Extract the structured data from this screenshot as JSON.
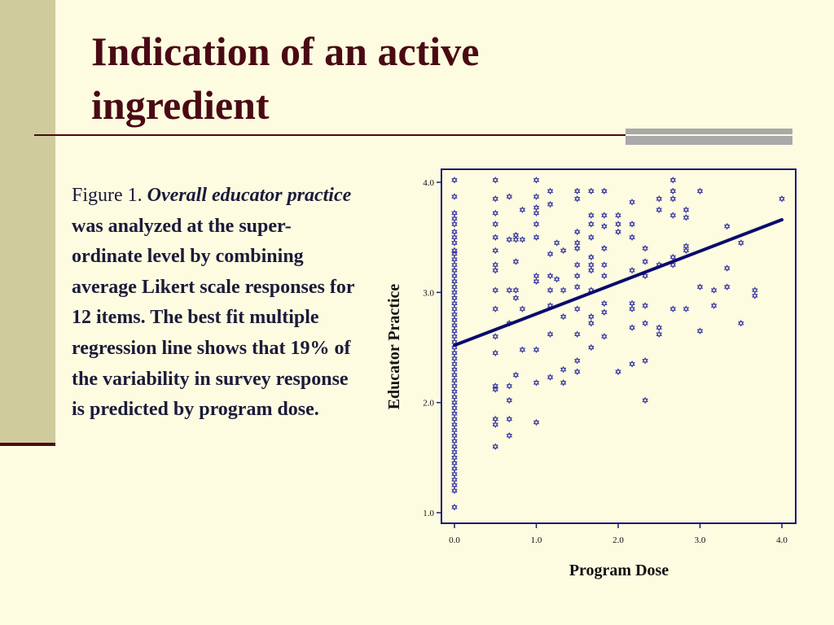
{
  "slide": {
    "title": "Indication of an active ingredient",
    "caption": {
      "label": "Figure 1.",
      "emphasis": "Overall educator practice",
      "body": "was analyzed at the super-ordinate level by combining average Likert scale responses for 12 items. The best fit multiple regression line shows that 19% of the variability in survey response is predicted by program dose."
    }
  },
  "colors": {
    "background": "#fdfbe0",
    "title": "#4a0a14",
    "left_band": "#cfcb9c",
    "accent_bar": "#a9a8aa",
    "caption_text": "#1b1b3a",
    "plot_frame": "#1a1a7a",
    "points": "#3a3aa0",
    "fit_line": "#0a0a6e"
  },
  "chart_data": {
    "type": "scatter",
    "xlabel": "Program Dose",
    "ylabel": "Educator Practice",
    "xlim": [
      -0.1,
      4.17
    ],
    "ylim": [
      0.9,
      4.1
    ],
    "x_ticks": [
      "0.0",
      "1.0",
      "2.0",
      "3.0",
      "4.0"
    ],
    "y_ticks": [
      "1.0",
      "2.0",
      "3.0",
      "4.0"
    ],
    "grid": false,
    "marker": "star-of-david",
    "fit_line": {
      "x": [
        0.0,
        4.0
      ],
      "y": [
        2.52,
        3.66
      ]
    },
    "points": [
      [
        0,
        4.02
      ],
      [
        0,
        3.87
      ],
      [
        0,
        3.72
      ],
      [
        0,
        3.67
      ],
      [
        0,
        3.62
      ],
      [
        0,
        3.55
      ],
      [
        0,
        3.5
      ],
      [
        0,
        3.45
      ],
      [
        0,
        3.38
      ],
      [
        0,
        3.35
      ],
      [
        0,
        3.3
      ],
      [
        0,
        3.25
      ],
      [
        0,
        3.2
      ],
      [
        0,
        3.15
      ],
      [
        0,
        3.1
      ],
      [
        0,
        3.05
      ],
      [
        0,
        3.0
      ],
      [
        0,
        2.95
      ],
      [
        0,
        2.9
      ],
      [
        0,
        2.85
      ],
      [
        0,
        2.8
      ],
      [
        0,
        2.75
      ],
      [
        0,
        2.7
      ],
      [
        0,
        2.65
      ],
      [
        0,
        2.6
      ],
      [
        0,
        2.55
      ],
      [
        0,
        2.5
      ],
      [
        0,
        2.45
      ],
      [
        0,
        2.4
      ],
      [
        0,
        2.35
      ],
      [
        0,
        2.3
      ],
      [
        0,
        2.25
      ],
      [
        0,
        2.2
      ],
      [
        0,
        2.15
      ],
      [
        0,
        2.1
      ],
      [
        0,
        2.05
      ],
      [
        0,
        2.0
      ],
      [
        0,
        1.95
      ],
      [
        0,
        1.9
      ],
      [
        0,
        1.85
      ],
      [
        0,
        1.8
      ],
      [
        0,
        1.75
      ],
      [
        0,
        1.7
      ],
      [
        0,
        1.65
      ],
      [
        0,
        1.6
      ],
      [
        0,
        1.55
      ],
      [
        0,
        1.5
      ],
      [
        0,
        1.45
      ],
      [
        0,
        1.4
      ],
      [
        0,
        1.35
      ],
      [
        0,
        1.3
      ],
      [
        0,
        1.25
      ],
      [
        0,
        1.2
      ],
      [
        0,
        1.05
      ],
      [
        0.5,
        4.02
      ],
      [
        0.5,
        3.85
      ],
      [
        0.5,
        3.72
      ],
      [
        0.5,
        3.62
      ],
      [
        0.5,
        3.5
      ],
      [
        0.5,
        3.38
      ],
      [
        0.5,
        3.25
      ],
      [
        0.5,
        3.2
      ],
      [
        0.5,
        3.02
      ],
      [
        0.5,
        2.85
      ],
      [
        0.5,
        2.6
      ],
      [
        0.5,
        2.45
      ],
      [
        0.5,
        2.15
      ],
      [
        0.5,
        2.12
      ],
      [
        0.5,
        1.85
      ],
      [
        0.5,
        1.8
      ],
      [
        0.5,
        1.6
      ],
      [
        0.67,
        3.87
      ],
      [
        0.67,
        3.48
      ],
      [
        0.67,
        3.02
      ],
      [
        0.67,
        2.72
      ],
      [
        0.67,
        2.15
      ],
      [
        0.67,
        2.02
      ],
      [
        0.67,
        1.85
      ],
      [
        0.67,
        1.7
      ],
      [
        0.75,
        3.52
      ],
      [
        0.75,
        3.48
      ],
      [
        0.75,
        3.28
      ],
      [
        0.75,
        3.02
      ],
      [
        0.75,
        2.95
      ],
      [
        0.75,
        2.25
      ],
      [
        0.83,
        3.75
      ],
      [
        0.83,
        3.48
      ],
      [
        0.83,
        2.85
      ],
      [
        0.83,
        2.48
      ],
      [
        1.0,
        4.02
      ],
      [
        1.0,
        3.87
      ],
      [
        1.0,
        3.77
      ],
      [
        1.0,
        3.72
      ],
      [
        1.0,
        3.62
      ],
      [
        1.0,
        3.5
      ],
      [
        1.0,
        3.15
      ],
      [
        1.0,
        3.1
      ],
      [
        1.0,
        2.48
      ],
      [
        1.0,
        2.18
      ],
      [
        1.0,
        1.82
      ],
      [
        1.17,
        3.92
      ],
      [
        1.17,
        3.8
      ],
      [
        1.17,
        3.35
      ],
      [
        1.17,
        3.15
      ],
      [
        1.17,
        3.02
      ],
      [
        1.17,
        2.88
      ],
      [
        1.17,
        2.62
      ],
      [
        1.17,
        2.23
      ],
      [
        1.25,
        3.45
      ],
      [
        1.25,
        3.12
      ],
      [
        1.33,
        3.38
      ],
      [
        1.33,
        3.02
      ],
      [
        1.33,
        2.78
      ],
      [
        1.33,
        2.3
      ],
      [
        1.33,
        2.18
      ],
      [
        1.5,
        3.92
      ],
      [
        1.5,
        3.85
      ],
      [
        1.5,
        3.55
      ],
      [
        1.5,
        3.45
      ],
      [
        1.5,
        3.4
      ],
      [
        1.5,
        3.25
      ],
      [
        1.5,
        3.15
      ],
      [
        1.5,
        3.05
      ],
      [
        1.5,
        2.85
      ],
      [
        1.5,
        2.62
      ],
      [
        1.5,
        2.38
      ],
      [
        1.5,
        2.28
      ],
      [
        1.67,
        3.92
      ],
      [
        1.67,
        3.7
      ],
      [
        1.67,
        3.62
      ],
      [
        1.67,
        3.5
      ],
      [
        1.67,
        3.32
      ],
      [
        1.67,
        3.25
      ],
      [
        1.67,
        3.2
      ],
      [
        1.67,
        3.02
      ],
      [
        1.67,
        2.78
      ],
      [
        1.67,
        2.72
      ],
      [
        1.67,
        2.5
      ],
      [
        1.83,
        3.92
      ],
      [
        1.83,
        3.7
      ],
      [
        1.83,
        3.6
      ],
      [
        1.83,
        3.4
      ],
      [
        1.83,
        3.25
      ],
      [
        1.83,
        3.15
      ],
      [
        1.83,
        2.9
      ],
      [
        1.83,
        2.82
      ],
      [
        1.83,
        2.6
      ],
      [
        2.0,
        3.7
      ],
      [
        2.0,
        3.62
      ],
      [
        2.0,
        3.55
      ],
      [
        2.0,
        2.28
      ],
      [
        2.17,
        3.82
      ],
      [
        2.17,
        3.62
      ],
      [
        2.17,
        3.5
      ],
      [
        2.17,
        3.2
      ],
      [
        2.17,
        2.9
      ],
      [
        2.17,
        2.85
      ],
      [
        2.17,
        2.68
      ],
      [
        2.17,
        2.35
      ],
      [
        2.33,
        3.4
      ],
      [
        2.33,
        3.28
      ],
      [
        2.33,
        3.15
      ],
      [
        2.33,
        2.88
      ],
      [
        2.33,
        2.72
      ],
      [
        2.33,
        2.38
      ],
      [
        2.33,
        2.02
      ],
      [
        2.5,
        3.85
      ],
      [
        2.5,
        3.75
      ],
      [
        2.5,
        3.25
      ],
      [
        2.5,
        2.68
      ],
      [
        2.5,
        2.62
      ],
      [
        2.67,
        4.02
      ],
      [
        2.67,
        3.92
      ],
      [
        2.67,
        3.85
      ],
      [
        2.67,
        3.7
      ],
      [
        2.67,
        3.32
      ],
      [
        2.67,
        3.25
      ],
      [
        2.67,
        2.85
      ],
      [
        2.83,
        3.75
      ],
      [
        2.83,
        3.68
      ],
      [
        2.83,
        3.42
      ],
      [
        2.83,
        3.38
      ],
      [
        2.83,
        2.85
      ],
      [
        3.0,
        3.92
      ],
      [
        3.0,
        3.05
      ],
      [
        3.0,
        2.65
      ],
      [
        3.17,
        3.02
      ],
      [
        3.17,
        2.88
      ],
      [
        3.33,
        3.6
      ],
      [
        3.33,
        3.22
      ],
      [
        3.33,
        3.05
      ],
      [
        3.5,
        3.45
      ],
      [
        3.5,
        2.72
      ],
      [
        3.67,
        3.02
      ],
      [
        3.67,
        2.97
      ],
      [
        4.0,
        3.85
      ]
    ]
  }
}
